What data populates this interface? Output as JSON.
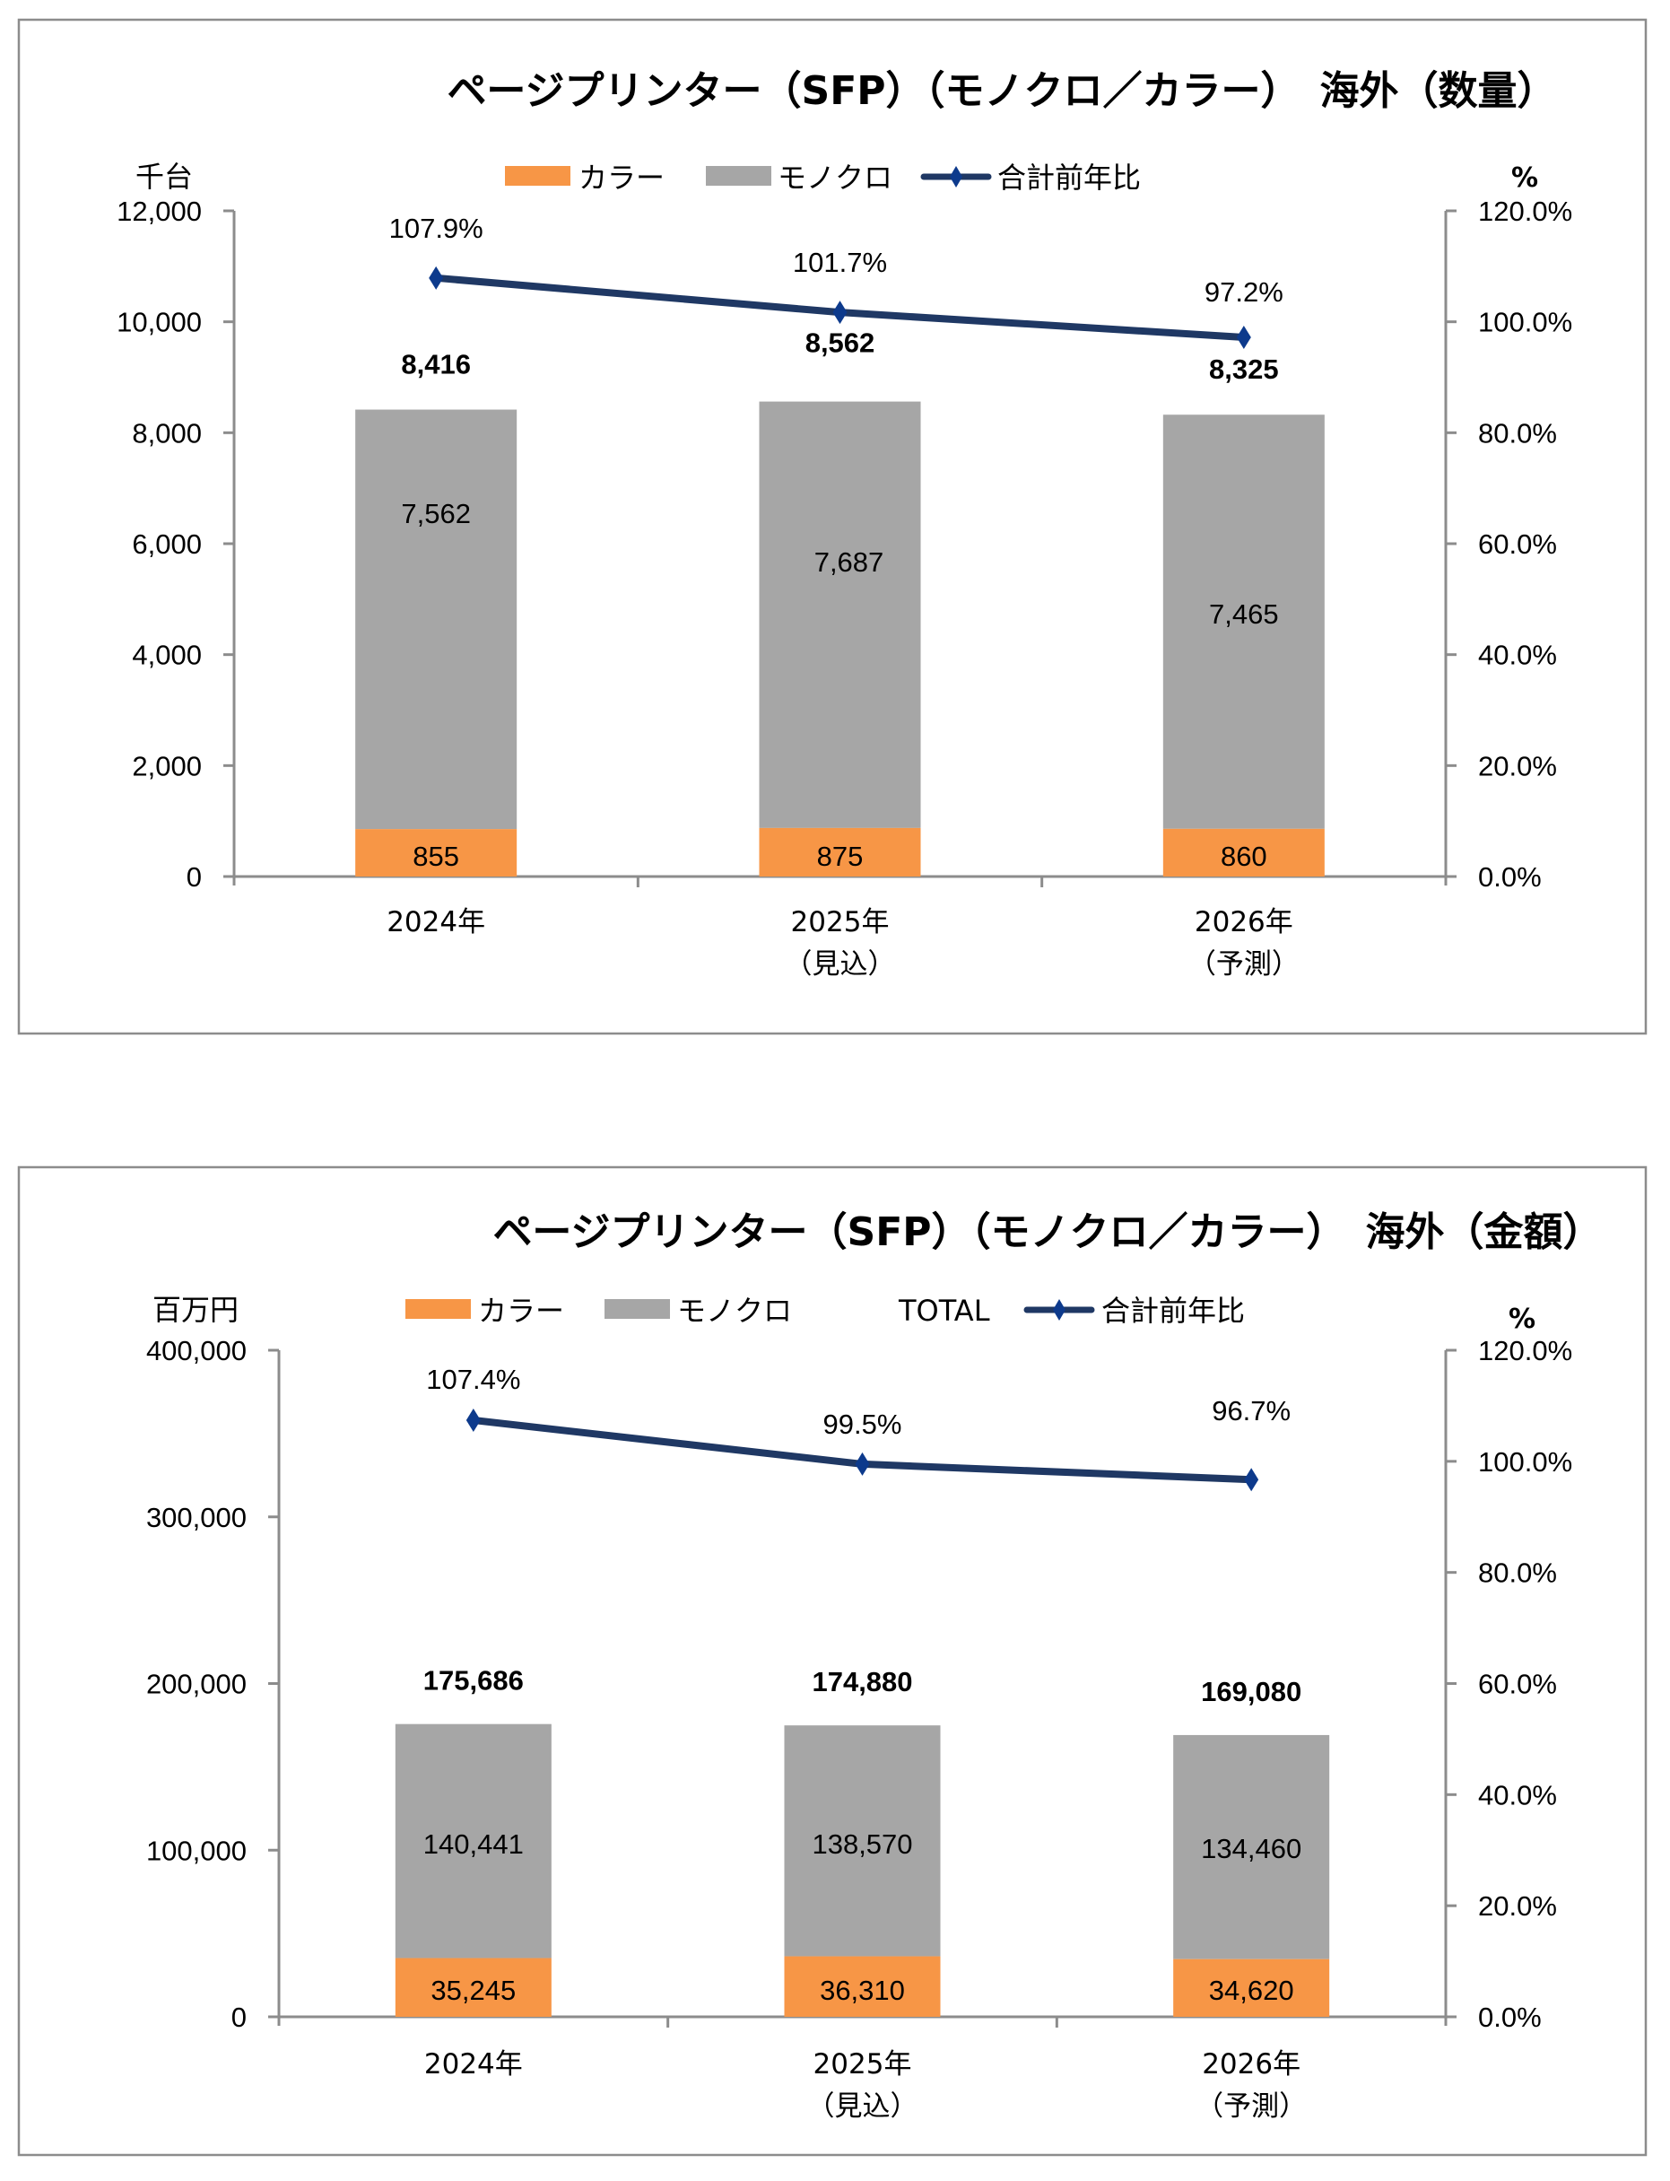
{
  "colors": {
    "color_series": "#f79646",
    "mono_series": "#a6a6a6",
    "line_series": "#1f3864",
    "marker": "#0d3a8c",
    "axis": "#8c8c8c",
    "frame": "#8c8c8c"
  },
  "chart_data": [
    {
      "type": "bar",
      "stacked": true,
      "title": "ページプリンター（SFP）（モノクロ／カラー）　海外（数量）",
      "ylabel": "千台",
      "y2label": "%",
      "categories": [
        [
          "2024年"
        ],
        [
          "2025年",
          "（見込）"
        ],
        [
          "2026年",
          "（予測）"
        ]
      ],
      "ylim": [
        0,
        12000
      ],
      "yticks": [
        "0",
        "2,000",
        "4,000",
        "6,000",
        "8,000",
        "10,000",
        "12,000"
      ],
      "y2lim": [
        0,
        120
      ],
      "y2ticks": [
        "0.0%",
        "20.0%",
        "40.0%",
        "60.0%",
        "80.0%",
        "100.0%",
        "120.0%"
      ],
      "legend": [
        {
          "name": "カラー",
          "kind": "swatch",
          "color_key": "color_series"
        },
        {
          "name": "モノクロ",
          "kind": "swatch",
          "color_key": "mono_series"
        },
        {
          "name": "合計前年比",
          "kind": "line",
          "color_key": "line_series"
        }
      ],
      "legend_position": "top",
      "series": [
        {
          "name": "カラー",
          "values": [
            855,
            875,
            860
          ],
          "labels": [
            "855",
            "875",
            "860"
          ]
        },
        {
          "name": "モノクロ",
          "values": [
            7562,
            7687,
            7465
          ],
          "labels": [
            "7,562",
            "7,687",
            "7,465"
          ]
        }
      ],
      "totals": {
        "values": [
          8416,
          8562,
          8325
        ],
        "labels": [
          "8,416",
          "8,562",
          "8,325"
        ]
      },
      "line": {
        "name": "合計前年比",
        "axis": "right",
        "values": [
          107.9,
          101.7,
          97.2
        ],
        "labels": [
          "107.9%",
          "101.7%",
          "97.2%"
        ]
      }
    },
    {
      "type": "bar",
      "stacked": true,
      "title": "ページプリンター（SFP）（モノクロ／カラー）　海外（金額）",
      "ylabel": "百万円",
      "y2label": "%",
      "categories": [
        [
          "2024年"
        ],
        [
          "2025年",
          "（見込）"
        ],
        [
          "2026年",
          "（予測）"
        ]
      ],
      "ylim": [
        0,
        400000
      ],
      "yticks": [
        "0",
        "100,000",
        "200,000",
        "300,000",
        "400,000"
      ],
      "y2lim": [
        0,
        120
      ],
      "y2ticks": [
        "0.0%",
        "20.0%",
        "40.0%",
        "60.0%",
        "80.0%",
        "100.0%",
        "120.0%"
      ],
      "legend": [
        {
          "name": "カラー",
          "kind": "swatch",
          "color_key": "color_series"
        },
        {
          "name": "モノクロ",
          "kind": "swatch",
          "color_key": "mono_series"
        },
        {
          "name": "TOTAL",
          "kind": "none",
          "color_key": ""
        },
        {
          "name": "合計前年比",
          "kind": "line",
          "color_key": "line_series"
        }
      ],
      "legend_position": "top",
      "series": [
        {
          "name": "カラー",
          "values": [
            35245,
            36310,
            34620
          ],
          "labels": [
            "35,245",
            "36,310",
            "34,620"
          ]
        },
        {
          "name": "モノクロ",
          "values": [
            140441,
            138570,
            134460
          ],
          "labels": [
            "140,441",
            "138,570",
            "134,460"
          ]
        }
      ],
      "totals": {
        "values": [
          175686,
          174880,
          169080
        ],
        "labels": [
          "175,686",
          "174,880",
          "169,080"
        ]
      },
      "line": {
        "name": "合計前年比",
        "axis": "right",
        "values": [
          107.4,
          99.5,
          96.7
        ],
        "labels": [
          "107.4%",
          "99.5%",
          "96.7%"
        ]
      }
    }
  ]
}
